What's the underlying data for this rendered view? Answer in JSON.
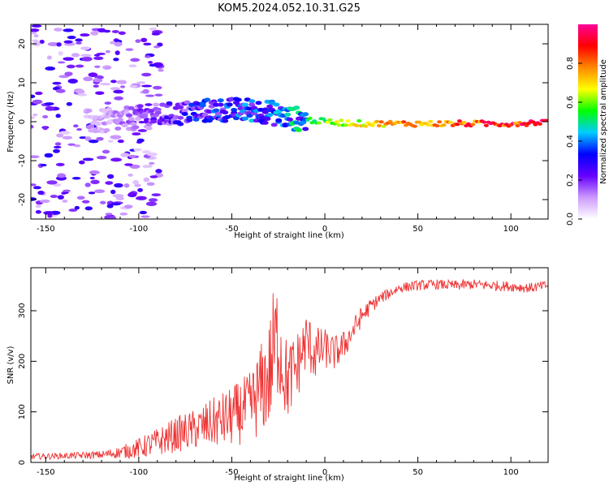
{
  "title": "KOM5.2024.052.10.31.G25",
  "chart_data": [
    {
      "type": "heatmap",
      "xlabel": "Height of straight line (km)",
      "ylabel": "Frequency (Hz)",
      "xlim": [
        -158,
        120
      ],
      "ylim": [
        -25,
        25
      ],
      "xticks": [
        -150,
        -100,
        -50,
        0,
        50,
        100
      ],
      "yticks": [
        -20,
        -10,
        0,
        10,
        20
      ],
      "colorbar": {
        "label": "Normalized spectral amplitude",
        "range": [
          0,
          1
        ],
        "ticks": [
          0.0,
          0.2,
          0.4,
          0.6,
          0.8
        ],
        "colors": [
          "#ffffff",
          "#cc99ff",
          "#6600ff",
          "#0000ff",
          "#00ccff",
          "#00ff00",
          "#ffff00",
          "#ff8800",
          "#ff0000",
          "#ff0099"
        ]
      },
      "ridge": {
        "x": [
          -120,
          -100,
          -80,
          -60,
          -40,
          -30,
          -20,
          -10,
          0,
          20,
          40,
          60,
          80,
          100,
          120
        ],
        "freq": [
          0,
          1,
          2,
          3,
          3,
          2.5,
          1,
          0.5,
          0,
          -0.5,
          -0.5,
          -0.5,
          -0.5,
          -0.5,
          0
        ],
        "amplitude": [
          0.12,
          0.2,
          0.3,
          0.38,
          0.42,
          0.4,
          0.5,
          0.55,
          0.6,
          0.7,
          0.8,
          0.85,
          0.88,
          0.92,
          0.9
        ]
      },
      "grid": false
    },
    {
      "type": "line",
      "xlabel": "Height of straight line (km)",
      "ylabel": "SNR (v/v)",
      "xlim": [
        -158,
        120
      ],
      "ylim": [
        0,
        385
      ],
      "xticks": [
        -150,
        -100,
        -50,
        0,
        50,
        100
      ],
      "yticks": [
        0,
        100,
        200,
        300
      ],
      "series": [
        {
          "color": "#ee3333",
          "x": [
            -158,
            -150,
            -140,
            -130,
            -120,
            -110,
            -100,
            -90,
            -80,
            -70,
            -60,
            -50,
            -40,
            -35,
            -30,
            -28,
            -25,
            -22,
            -20,
            -15,
            -10,
            -5,
            0,
            5,
            10,
            15,
            20,
            25,
            30,
            40,
            50,
            60,
            70,
            80,
            90,
            100,
            110,
            120
          ],
          "y": [
            12,
            12,
            13,
            14,
            15,
            20,
            28,
            40,
            55,
            65,
            78,
            90,
            110,
            140,
            170,
            210,
            250,
            180,
            160,
            190,
            240,
            215,
            225,
            215,
            230,
            260,
            290,
            310,
            325,
            345,
            350,
            352,
            350,
            352,
            350,
            348,
            345,
            350
          ],
          "noise_amplitude": [
            6,
            6,
            6,
            7,
            8,
            12,
            20,
            28,
            35,
            40,
            50,
            60,
            70,
            90,
            110,
            130,
            120,
            90,
            80,
            70,
            60,
            55,
            40,
            35,
            30,
            25,
            20,
            15,
            12,
            10,
            10,
            10,
            10,
            10,
            10,
            10,
            10,
            10
          ]
        }
      ],
      "grid": false
    }
  ]
}
